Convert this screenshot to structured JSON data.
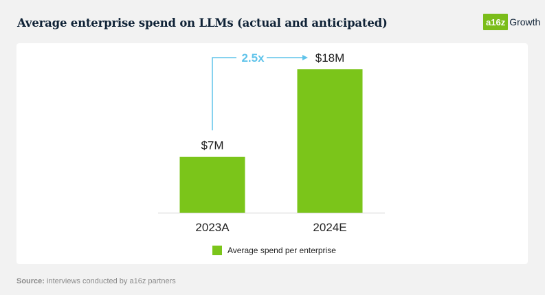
{
  "title": "Average enterprise spend on LLMs (actual and anticipated)",
  "logo": {
    "mark": "a16z",
    "text": "Growth"
  },
  "chart_data": {
    "type": "bar",
    "categories": [
      "2023A",
      "2024E"
    ],
    "values": [
      7,
      18
    ],
    "data_labels": [
      "$7M",
      "$18M"
    ],
    "unit": "$M",
    "series": [
      {
        "name": "Average spend per enterprise",
        "values": [
          7,
          18
        ]
      }
    ],
    "annotation": "2.5x",
    "ylim": [
      0,
      18
    ],
    "grid": false,
    "legend_position": "bottom",
    "colors": {
      "bar": "#7bc51a",
      "annotation": "#5fc3ea"
    }
  },
  "legend": {
    "label": "Average spend per enterprise"
  },
  "source": {
    "prefix": "Source:",
    "text": "interviews conducted by a16z partners"
  }
}
